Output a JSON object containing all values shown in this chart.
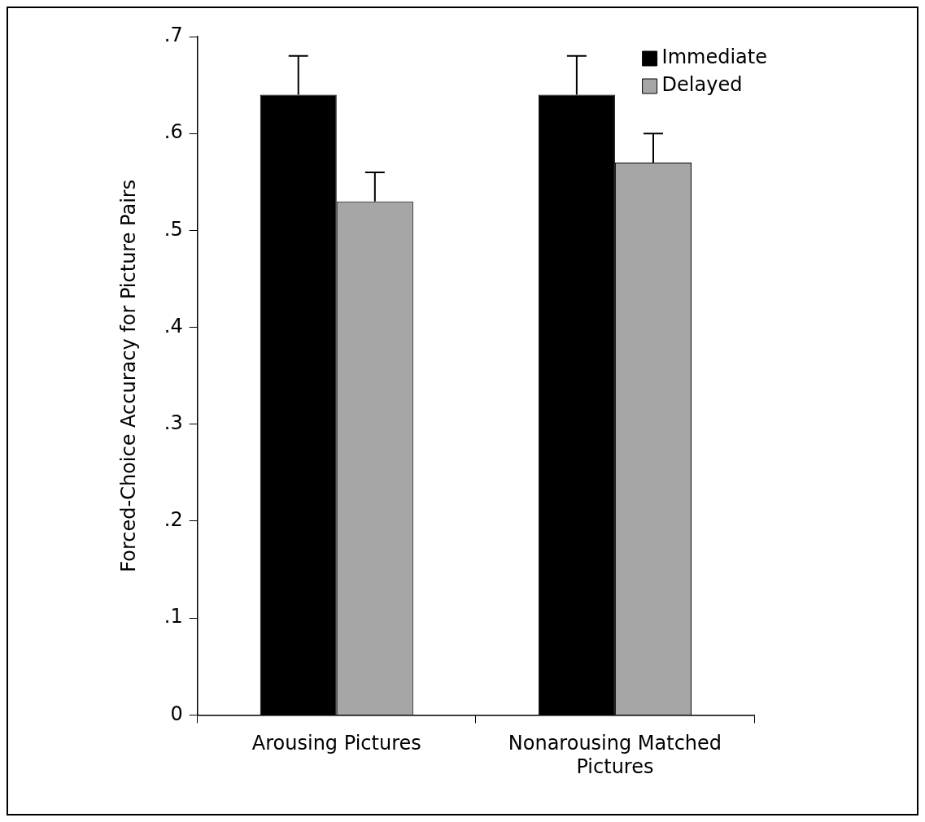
{
  "chart_data": {
    "type": "bar",
    "ylabel": "Forced-Choice Accuracy for Picture Pairs",
    "categories": [
      "Arousing Pictures",
      "Nonarousing Matched Pictures"
    ],
    "series": [
      {
        "name": "Immediate",
        "color": "#000000",
        "values": [
          0.64,
          0.64
        ],
        "errors": [
          [
            0.64,
            0.68
          ],
          [
            0.64,
            0.68
          ]
        ]
      },
      {
        "name": "Delayed",
        "color": "#a6a6a6",
        "values": [
          0.53,
          0.57
        ],
        "errors": [
          [
            0.53,
            0.56
          ],
          [
            0.57,
            0.6
          ]
        ]
      }
    ],
    "ylim": [
      0,
      0.7
    ],
    "yticks": [
      0,
      {
        "value": 0.1,
        "label": ".1"
      },
      {
        "value": 0.2,
        "label": ".2"
      },
      {
        "value": 0.3,
        "label": ".3"
      },
      {
        "value": 0.4,
        "label": ".4"
      },
      {
        "value": 0.5,
        "label": ".5"
      },
      {
        "value": 0.6,
        "label": ".6"
      },
      {
        "value": 0.7,
        "label": ".7"
      }
    ],
    "grid": false,
    "legend": "top right"
  }
}
